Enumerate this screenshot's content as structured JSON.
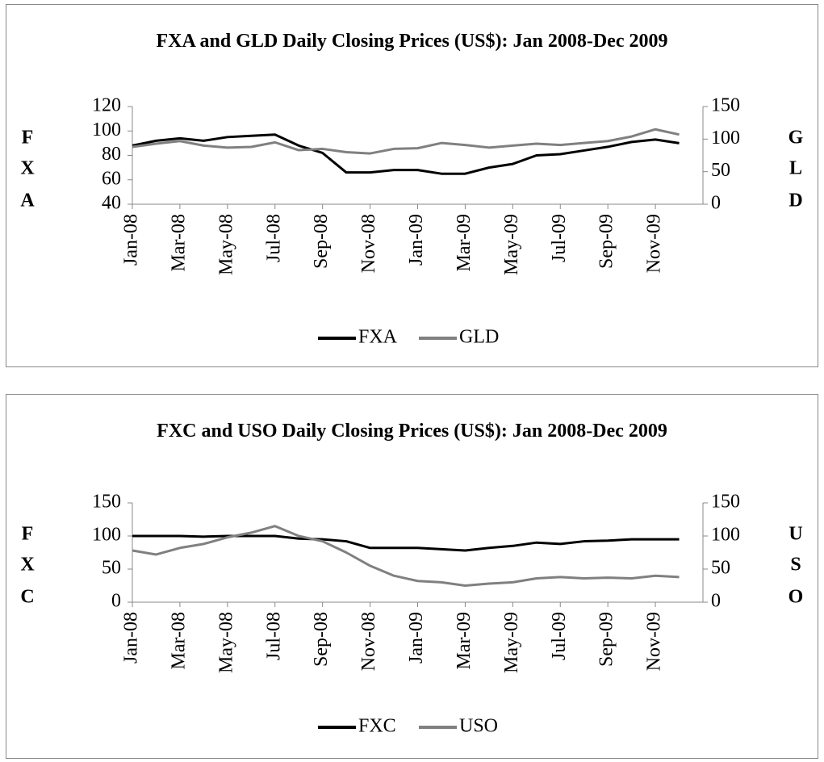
{
  "chart_data": [
    {
      "type": "line",
      "title": "FXA and GLD Daily Closing Prices (US$): Jan 2008-Dec 2009",
      "categories": [
        "Jan-08",
        null,
        "Mar-08",
        null,
        "May-08",
        null,
        "Jul-08",
        null,
        "Sep-08",
        null,
        "Nov-08",
        null,
        "Jan-09",
        null,
        "Mar-09",
        null,
        "May-09",
        null,
        "Jul-09",
        null,
        "Sep-09",
        null,
        "Nov-09",
        null
      ],
      "y_label": [
        "F",
        "X",
        "A"
      ],
      "y2_label": [
        "G",
        "L",
        "D"
      ],
      "ylim": [
        40,
        120
      ],
      "yticks": [
        40,
        60,
        80,
        100,
        120
      ],
      "y2lim": [
        0,
        150
      ],
      "y2ticks": [
        0,
        50,
        100,
        150
      ],
      "legend": "bottom",
      "series": [
        {
          "name": "FXA",
          "color": "#000000",
          "values": [
            88,
            92,
            94,
            92,
            95,
            96,
            97,
            88,
            82,
            66,
            66,
            68,
            68,
            65,
            65,
            70,
            73,
            80,
            81,
            84,
            87,
            91,
            93,
            90
          ]
        },
        {
          "name": "GLD",
          "color": "#808080",
          "axis": "y2",
          "values": [
            88,
            93,
            97,
            90,
            87,
            88,
            95,
            83,
            85,
            80,
            78,
            85,
            86,
            94,
            91,
            87,
            90,
            93,
            91,
            94,
            97,
            104,
            115,
            107
          ]
        }
      ]
    },
    {
      "type": "line",
      "title": "FXC and USO Daily Closing Prices (US$): Jan 2008-Dec 2009",
      "categories": [
        "Jan-08",
        null,
        "Mar-08",
        null,
        "May-08",
        null,
        "Jul-08",
        null,
        "Sep-08",
        null,
        "Nov-08",
        null,
        "Jan-09",
        null,
        "Mar-09",
        null,
        "May-09",
        null,
        "Jul-09",
        null,
        "Sep-09",
        null,
        "Nov-09",
        null
      ],
      "y_label": [
        "F",
        "X",
        "C"
      ],
      "y2_label": [
        "U",
        "S",
        "O"
      ],
      "ylim": [
        0,
        150
      ],
      "yticks": [
        0,
        50,
        100,
        150
      ],
      "y2lim": [
        0,
        150
      ],
      "y2ticks": [
        0,
        50,
        100,
        150
      ],
      "legend": "bottom",
      "series": [
        {
          "name": "FXC",
          "color": "#000000",
          "values": [
            100,
            100,
            100,
            99,
            100,
            100,
            100,
            96,
            95,
            92,
            82,
            82,
            82,
            80,
            78,
            82,
            85,
            90,
            88,
            92,
            93,
            95,
            95,
            95
          ]
        },
        {
          "name": "USO",
          "color": "#808080",
          "axis": "y2",
          "values": [
            78,
            72,
            82,
            88,
            98,
            105,
            115,
            100,
            92,
            75,
            55,
            40,
            32,
            30,
            25,
            28,
            30,
            36,
            38,
            36,
            37,
            36,
            40,
            38
          ]
        }
      ]
    }
  ]
}
